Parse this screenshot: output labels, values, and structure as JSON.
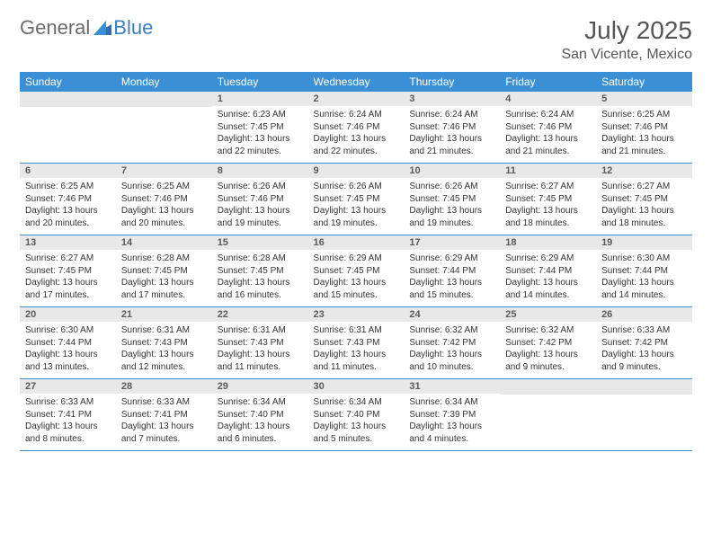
{
  "brand": {
    "part1": "General",
    "part2": "Blue"
  },
  "title": {
    "month": "July 2025",
    "location": "San Vicente, Mexico"
  },
  "colors": {
    "header_bg": "#3b8fd4",
    "header_text": "#ffffff",
    "daynum_bg": "#e8e8e8",
    "daynum_text": "#5a5a5a",
    "body_text": "#333333",
    "rule": "#3b8fd4",
    "brand_gray": "#6b6b6b",
    "brand_blue": "#3b7fc4"
  },
  "weekdays": [
    "Sunday",
    "Monday",
    "Tuesday",
    "Wednesday",
    "Thursday",
    "Friday",
    "Saturday"
  ],
  "startOffset": 2,
  "days": [
    {
      "n": 1,
      "sr": "6:23 AM",
      "ss": "7:45 PM",
      "dl": "13 hours and 22 minutes."
    },
    {
      "n": 2,
      "sr": "6:24 AM",
      "ss": "7:46 PM",
      "dl": "13 hours and 22 minutes."
    },
    {
      "n": 3,
      "sr": "6:24 AM",
      "ss": "7:46 PM",
      "dl": "13 hours and 21 minutes."
    },
    {
      "n": 4,
      "sr": "6:24 AM",
      "ss": "7:46 PM",
      "dl": "13 hours and 21 minutes."
    },
    {
      "n": 5,
      "sr": "6:25 AM",
      "ss": "7:46 PM",
      "dl": "13 hours and 21 minutes."
    },
    {
      "n": 6,
      "sr": "6:25 AM",
      "ss": "7:46 PM",
      "dl": "13 hours and 20 minutes."
    },
    {
      "n": 7,
      "sr": "6:25 AM",
      "ss": "7:46 PM",
      "dl": "13 hours and 20 minutes."
    },
    {
      "n": 8,
      "sr": "6:26 AM",
      "ss": "7:46 PM",
      "dl": "13 hours and 19 minutes."
    },
    {
      "n": 9,
      "sr": "6:26 AM",
      "ss": "7:45 PM",
      "dl": "13 hours and 19 minutes."
    },
    {
      "n": 10,
      "sr": "6:26 AM",
      "ss": "7:45 PM",
      "dl": "13 hours and 19 minutes."
    },
    {
      "n": 11,
      "sr": "6:27 AM",
      "ss": "7:45 PM",
      "dl": "13 hours and 18 minutes."
    },
    {
      "n": 12,
      "sr": "6:27 AM",
      "ss": "7:45 PM",
      "dl": "13 hours and 18 minutes."
    },
    {
      "n": 13,
      "sr": "6:27 AM",
      "ss": "7:45 PM",
      "dl": "13 hours and 17 minutes."
    },
    {
      "n": 14,
      "sr": "6:28 AM",
      "ss": "7:45 PM",
      "dl": "13 hours and 17 minutes."
    },
    {
      "n": 15,
      "sr": "6:28 AM",
      "ss": "7:45 PM",
      "dl": "13 hours and 16 minutes."
    },
    {
      "n": 16,
      "sr": "6:29 AM",
      "ss": "7:45 PM",
      "dl": "13 hours and 15 minutes."
    },
    {
      "n": 17,
      "sr": "6:29 AM",
      "ss": "7:44 PM",
      "dl": "13 hours and 15 minutes."
    },
    {
      "n": 18,
      "sr": "6:29 AM",
      "ss": "7:44 PM",
      "dl": "13 hours and 14 minutes."
    },
    {
      "n": 19,
      "sr": "6:30 AM",
      "ss": "7:44 PM",
      "dl": "13 hours and 14 minutes."
    },
    {
      "n": 20,
      "sr": "6:30 AM",
      "ss": "7:44 PM",
      "dl": "13 hours and 13 minutes."
    },
    {
      "n": 21,
      "sr": "6:31 AM",
      "ss": "7:43 PM",
      "dl": "13 hours and 12 minutes."
    },
    {
      "n": 22,
      "sr": "6:31 AM",
      "ss": "7:43 PM",
      "dl": "13 hours and 11 minutes."
    },
    {
      "n": 23,
      "sr": "6:31 AM",
      "ss": "7:43 PM",
      "dl": "13 hours and 11 minutes."
    },
    {
      "n": 24,
      "sr": "6:32 AM",
      "ss": "7:42 PM",
      "dl": "13 hours and 10 minutes."
    },
    {
      "n": 25,
      "sr": "6:32 AM",
      "ss": "7:42 PM",
      "dl": "13 hours and 9 minutes."
    },
    {
      "n": 26,
      "sr": "6:33 AM",
      "ss": "7:42 PM",
      "dl": "13 hours and 9 minutes."
    },
    {
      "n": 27,
      "sr": "6:33 AM",
      "ss": "7:41 PM",
      "dl": "13 hours and 8 minutes."
    },
    {
      "n": 28,
      "sr": "6:33 AM",
      "ss": "7:41 PM",
      "dl": "13 hours and 7 minutes."
    },
    {
      "n": 29,
      "sr": "6:34 AM",
      "ss": "7:40 PM",
      "dl": "13 hours and 6 minutes."
    },
    {
      "n": 30,
      "sr": "6:34 AM",
      "ss": "7:40 PM",
      "dl": "13 hours and 5 minutes."
    },
    {
      "n": 31,
      "sr": "6:34 AM",
      "ss": "7:39 PM",
      "dl": "13 hours and 4 minutes."
    }
  ],
  "labels": {
    "sunrise": "Sunrise:",
    "sunset": "Sunset:",
    "daylight": "Daylight:"
  }
}
